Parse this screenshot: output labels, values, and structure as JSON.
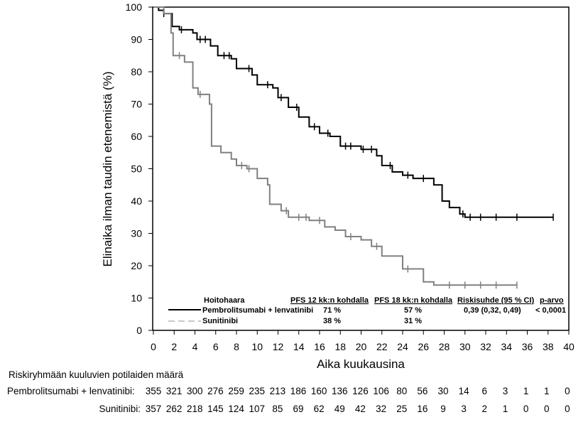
{
  "chart_data": {
    "type": "line",
    "subtype": "kaplan-meier",
    "xlabel": "Aika kuukausina",
    "ylabel": "Elinaika ilman taudin etenemistä (%)",
    "xlim": [
      0,
      40
    ],
    "ylim": [
      0,
      100
    ],
    "xticks": [
      0,
      2,
      4,
      6,
      8,
      10,
      12,
      14,
      16,
      18,
      20,
      22,
      24,
      26,
      28,
      30,
      32,
      34,
      36,
      38,
      40
    ],
    "yticks": [
      0,
      10,
      20,
      30,
      40,
      50,
      60,
      70,
      80,
      90,
      100
    ],
    "grid": false,
    "colors": {
      "pembro": "#000000",
      "suni": "#808080"
    },
    "series": [
      {
        "name": "Pembrolitsumabi + lenvatinibi",
        "line_style": "solid",
        "x": [
          0,
          0.5,
          1,
          1.8,
          2.5,
          3.8,
          4.2,
          5.5,
          6.2,
          7.5,
          8,
          9.5,
          10,
          11.5,
          12,
          13,
          14,
          15,
          16,
          17,
          18,
          20,
          21.5,
          22,
          23,
          24,
          25,
          27,
          27.8,
          28.5,
          29.5,
          30,
          38.5
        ],
        "y": [
          100,
          99,
          98,
          94,
          93,
          92,
          90,
          88,
          85,
          84,
          81,
          79,
          76,
          75,
          72,
          69,
          66,
          63,
          61,
          60,
          57,
          56,
          54,
          51,
          49,
          48,
          47,
          45,
          40,
          38,
          36,
          35,
          35
        ],
        "censored_x": [
          1,
          2.7,
          4.5,
          5,
          6.8,
          7.3,
          9.2,
          11,
          12.3,
          13.8,
          15.5,
          16.8,
          18.5,
          19,
          20.2,
          21,
          22.8,
          24.5,
          26,
          29.8,
          30.5,
          31.5,
          33,
          35,
          38.5
        ]
      },
      {
        "name": "Sunitinibi",
        "line_style": "dashed",
        "x": [
          0,
          1,
          1.7,
          1.9,
          3,
          3.8,
          4.3,
          5.4,
          5.6,
          6.5,
          7.5,
          8,
          9,
          10,
          11,
          11.2,
          12.3,
          13,
          15,
          16.5,
          17.5,
          18.5,
          20,
          21,
          22,
          23.5,
          24,
          26,
          27,
          35
        ],
        "y": [
          100,
          98,
          92,
          85,
          83,
          75,
          73,
          70,
          57,
          55,
          53,
          51,
          50,
          47,
          45,
          39,
          37,
          35,
          34,
          32,
          31,
          29,
          28,
          26,
          23,
          23,
          19,
          15,
          14,
          14
        ],
        "censored_x": [
          2.5,
          4.5,
          8.5,
          9.2,
          12.8,
          14,
          14.7,
          16,
          19,
          21.5,
          24.5,
          28.5,
          30,
          31.5,
          33,
          35
        ]
      }
    ],
    "legend": {
      "position": "bottom-right",
      "headers": [
        "Hoitohaara",
        "PFS 12  kk:n kohdalla",
        "PFS 18  kk:n kohdalla",
        "Riskisuhde (95  % CI)",
        "p-arvo"
      ],
      "rows": [
        [
          "Pembrolitsumabi + lenvatinibi",
          "71  %",
          "57  %",
          "0,39 (0,32, 0,49)",
          "<  0,0001"
        ],
        [
          "Sunitinibi",
          "38  %",
          "31  %",
          "",
          ""
        ]
      ]
    },
    "risk_table": {
      "title": "Riskiryhmään kuuluvien potilaiden määrä",
      "times": [
        0,
        2,
        4,
        6,
        8,
        10,
        12,
        14,
        16,
        18,
        20,
        22,
        24,
        26,
        28,
        30,
        32,
        34,
        36,
        38,
        40
      ],
      "rows": [
        {
          "label": "Pembrolitsumabi + lenvatinibi:",
          "values": [
            355,
            321,
            300,
            276,
            259,
            235,
            213,
            186,
            160,
            136,
            126,
            106,
            80,
            56,
            30,
            14,
            6,
            3,
            1,
            1,
            0
          ]
        },
        {
          "label": "Sunitinibi:",
          "values": [
            357,
            262,
            218,
            145,
            124,
            107,
            85,
            69,
            62,
            49,
            42,
            32,
            25,
            16,
            9,
            3,
            2,
            1,
            0,
            0,
            0
          ]
        }
      ]
    }
  }
}
